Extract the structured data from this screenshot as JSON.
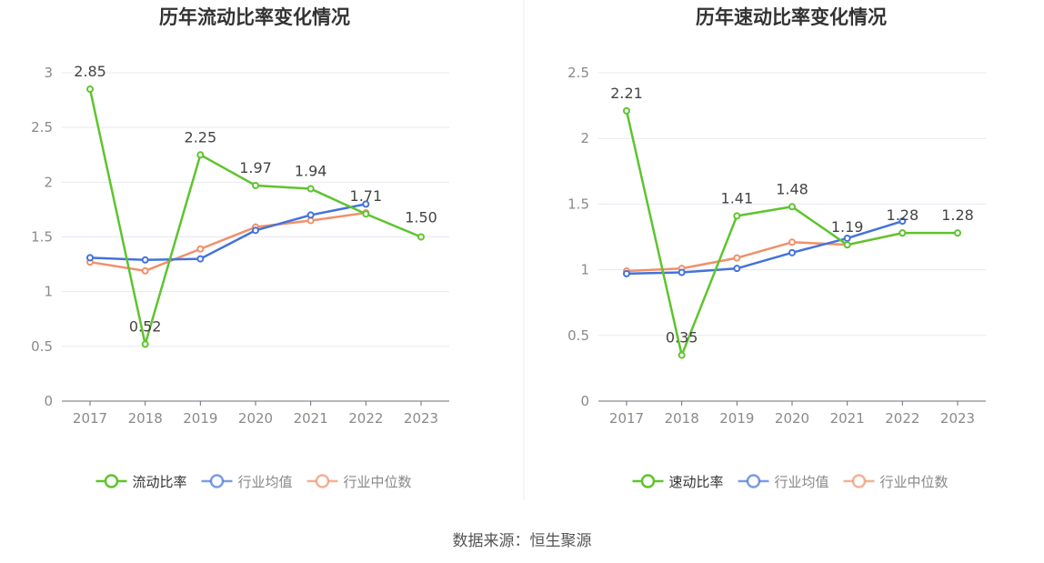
{
  "source_text": "数据来源：恒生聚源",
  "colors": {
    "company": "#5ec42e",
    "industry_avg": "#4472db",
    "industry_median": "#f0906a",
    "axis_label": "#8a8a8a",
    "value_label": "#444444",
    "grid": "#e6e8f0",
    "axis": "#6e7079",
    "title": "#333333"
  },
  "chart_data": [
    {
      "type": "line",
      "title": "历年流动比率变化情况",
      "categories": [
        "2017",
        "2018",
        "2019",
        "2020",
        "2021",
        "2022",
        "2023"
      ],
      "ylim": [
        0,
        3
      ],
      "yticks": [
        "0",
        "0.5",
        "1",
        "1.5",
        "2",
        "2.5",
        "3"
      ],
      "grid": true,
      "legend_position": "bottom-center",
      "series": [
        {
          "name": "流动比率",
          "values": [
            2.85,
            0.52,
            2.25,
            1.97,
            1.94,
            1.71,
            1.5
          ],
          "labels": [
            "2.85",
            "0.52",
            "2.25",
            "1.97",
            "1.94",
            "1.71",
            "1.50"
          ]
        },
        {
          "name": "行业均值",
          "values": [
            1.31,
            1.29,
            1.3,
            1.56,
            1.7,
            1.8,
            null
          ]
        },
        {
          "name": "行业中位数",
          "values": [
            1.27,
            1.19,
            1.39,
            1.59,
            1.65,
            1.72,
            null
          ]
        }
      ]
    },
    {
      "type": "line",
      "title": "历年速动比率变化情况",
      "categories": [
        "2017",
        "2018",
        "2019",
        "2020",
        "2021",
        "2022",
        "2023"
      ],
      "ylim": [
        0,
        2.5
      ],
      "yticks": [
        "0",
        "0.5",
        "1",
        "1.5",
        "2",
        "2.5"
      ],
      "grid": true,
      "legend_position": "bottom-center",
      "series": [
        {
          "name": "速动比率",
          "values": [
            2.21,
            0.35,
            1.41,
            1.48,
            1.19,
            1.28,
            1.28
          ],
          "labels": [
            "2.21",
            "0.35",
            "1.41",
            "1.48",
            "1.19",
            "1.28",
            "1.28"
          ]
        },
        {
          "name": "行业均值",
          "values": [
            0.97,
            0.98,
            1.01,
            1.13,
            1.24,
            1.37,
            null
          ]
        },
        {
          "name": "行业中位数",
          "values": [
            0.99,
            1.01,
            1.09,
            1.21,
            1.19,
            1.28,
            null
          ]
        }
      ]
    }
  ]
}
